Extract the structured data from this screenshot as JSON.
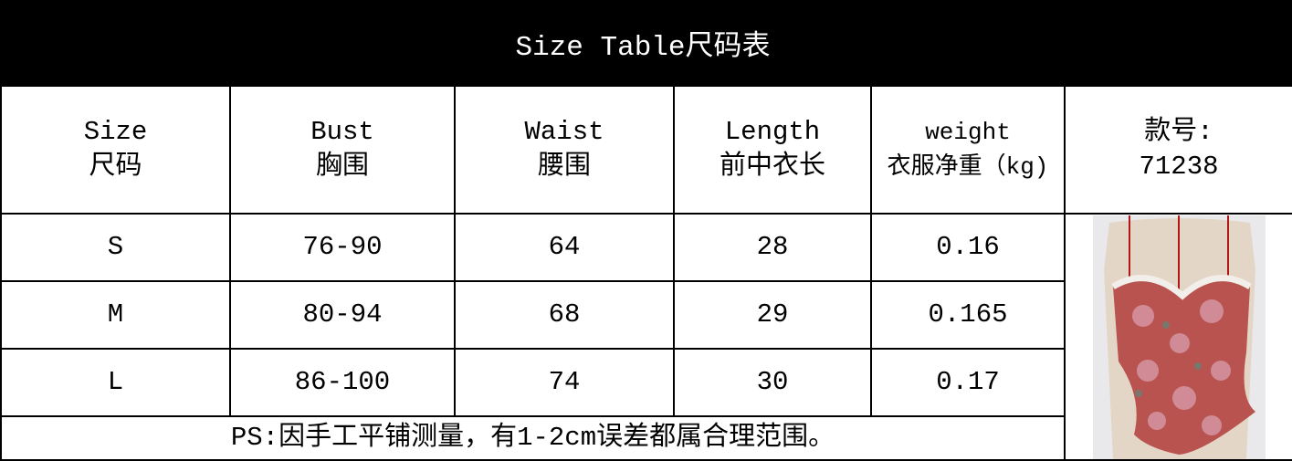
{
  "title": "Size Table尺码表",
  "header": {
    "size": [
      "Size",
      "尺码"
    ],
    "bust": [
      "Bust",
      "胸围"
    ],
    "waist": [
      "Waist",
      "腰围"
    ],
    "length": [
      "Length",
      "前中衣长"
    ],
    "weight": [
      "weight",
      "衣服净重（kg)"
    ],
    "style_no": [
      "款号:",
      "71238"
    ]
  },
  "rows": [
    {
      "size": "S",
      "bust": "76-90",
      "waist": "64",
      "length": "28",
      "weight": "0.16"
    },
    {
      "size": "M",
      "bust": "80-94",
      "waist": "68",
      "length": "29",
      "weight": "0.165"
    },
    {
      "size": "L",
      "bust": "86-100",
      "waist": "74",
      "length": "30",
      "weight": "0.17"
    }
  ],
  "note": "PS:因手工平铺测量，有1-2cm误差都属合理范围。",
  "product_image": {
    "description_icon": "floral-corset-photo",
    "colors": {
      "fabric": "#b8534f",
      "lace": "#f2eeea",
      "mannequin": "#e6d8c8"
    }
  }
}
